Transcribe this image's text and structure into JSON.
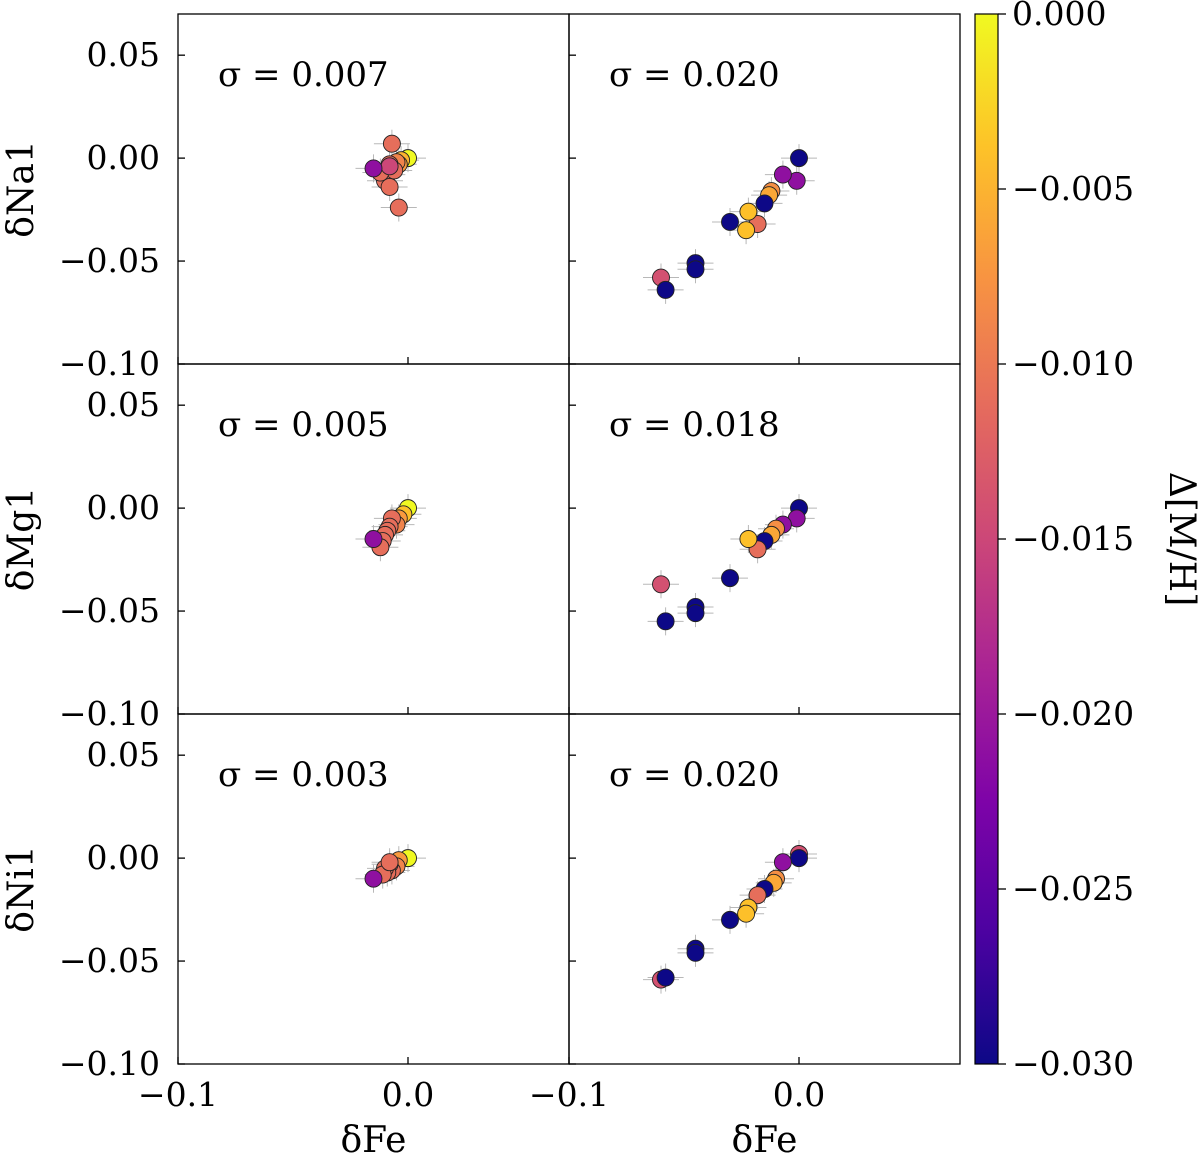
{
  "chart_data": {
    "type": "scatter",
    "grid": false,
    "layout": "3 rows x 2 columns of panels, shared axes, colorbar on the right",
    "xlabel": "δFe",
    "xlim": [
      -0.1,
      0.07
    ],
    "ylim": [
      -0.1,
      0.07
    ],
    "x_ticks": [
      -0.1,
      0.0
    ],
    "x_tick_labels": [
      "−0.1",
      "0.0"
    ],
    "y_ticks": [
      0.05,
      0.0,
      -0.05,
      -0.1
    ],
    "y_tick_labels": [
      "0.05",
      "0.00",
      "−0.05",
      "−0.10"
    ],
    "colorbar": {
      "label": "Δ[M/H]",
      "range": [
        -0.03,
        0.0
      ],
      "colormap": "plasma",
      "ticks": [
        0.0,
        -0.005,
        -0.01,
        -0.015,
        -0.02,
        -0.025,
        -0.03
      ],
      "tick_labels": [
        "0.000",
        "−0.005",
        "−0.010",
        "−0.015",
        "−0.020",
        "−0.025",
        "−0.030"
      ]
    },
    "rows": [
      {
        "ylabel": "δNa1",
        "panels": [
          {
            "sigma_label": "σ = 0.007",
            "points": [
              {
                "x": 0.0,
                "y": 0.0,
                "c": 0.0
              },
              {
                "x": -0.003,
                "y": -0.001,
                "c": -0.005
              },
              {
                "x": -0.004,
                "y": -0.003,
                "c": -0.007
              },
              {
                "x": -0.005,
                "y": -0.002,
                "c": -0.009
              },
              {
                "x": -0.007,
                "y": 0.007,
                "c": -0.011
              },
              {
                "x": -0.008,
                "y": -0.003,
                "c": -0.011
              },
              {
                "x": -0.009,
                "y": -0.008,
                "c": -0.011
              },
              {
                "x": -0.01,
                "y": -0.011,
                "c": -0.011
              },
              {
                "x": -0.008,
                "y": -0.014,
                "c": -0.011
              },
              {
                "x": -0.006,
                "y": -0.006,
                "c": -0.011
              },
              {
                "x": -0.012,
                "y": -0.007,
                "c": -0.011
              },
              {
                "x": -0.004,
                "y": -0.024,
                "c": -0.011
              },
              {
                "x": -0.008,
                "y": -0.004,
                "c": -0.015
              },
              {
                "x": -0.015,
                "y": -0.005,
                "c": -0.021
              }
            ]
          },
          {
            "sigma_label": "σ = 0.020",
            "points": [
              {
                "x": 0.0,
                "y": 0.0,
                "c": -0.03
              },
              {
                "x": -0.001,
                "y": -0.011,
                "c": -0.021
              },
              {
                "x": -0.007,
                "y": -0.008,
                "c": -0.021
              },
              {
                "x": -0.012,
                "y": -0.016,
                "c": -0.008
              },
              {
                "x": -0.013,
                "y": -0.018,
                "c": -0.006
              },
              {
                "x": -0.015,
                "y": -0.022,
                "c": -0.03
              },
              {
                "x": -0.018,
                "y": -0.032,
                "c": -0.011
              },
              {
                "x": -0.022,
                "y": -0.026,
                "c": -0.004
              },
              {
                "x": -0.023,
                "y": -0.035,
                "c": -0.004
              },
              {
                "x": -0.03,
                "y": -0.031,
                "c": -0.03
              },
              {
                "x": -0.045,
                "y": -0.051,
                "c": -0.03
              },
              {
                "x": -0.045,
                "y": -0.054,
                "c": -0.03
              },
              {
                "x": -0.06,
                "y": -0.058,
                "c": -0.014
              },
              {
                "x": -0.058,
                "y": -0.064,
                "c": -0.03
              }
            ]
          }
        ]
      },
      {
        "ylabel": "δMg1",
        "panels": [
          {
            "sigma_label": "σ = 0.005",
            "points": [
              {
                "x": 0.0,
                "y": 0.0,
                "c": 0.0
              },
              {
                "x": -0.002,
                "y": -0.003,
                "c": -0.004
              },
              {
                "x": -0.004,
                "y": -0.005,
                "c": -0.007
              },
              {
                "x": -0.005,
                "y": -0.008,
                "c": -0.009
              },
              {
                "x": -0.007,
                "y": -0.005,
                "c": -0.011
              },
              {
                "x": -0.008,
                "y": -0.009,
                "c": -0.011
              },
              {
                "x": -0.009,
                "y": -0.011,
                "c": -0.011
              },
              {
                "x": -0.01,
                "y": -0.013,
                "c": -0.011
              },
              {
                "x": -0.011,
                "y": -0.016,
                "c": -0.011
              },
              {
                "x": -0.012,
                "y": -0.019,
                "c": -0.011
              },
              {
                "x": -0.015,
                "y": -0.015,
                "c": -0.021
              }
            ]
          },
          {
            "sigma_label": "σ = 0.018",
            "points": [
              {
                "x": 0.0,
                "y": 0.0,
                "c": -0.03
              },
              {
                "x": -0.001,
                "y": -0.005,
                "c": -0.021
              },
              {
                "x": -0.007,
                "y": -0.008,
                "c": -0.021
              },
              {
                "x": -0.01,
                "y": -0.01,
                "c": -0.008
              },
              {
                "x": -0.012,
                "y": -0.013,
                "c": -0.006
              },
              {
                "x": -0.015,
                "y": -0.016,
                "c": -0.03
              },
              {
                "x": -0.018,
                "y": -0.02,
                "c": -0.011
              },
              {
                "x": -0.022,
                "y": -0.015,
                "c": -0.004
              },
              {
                "x": -0.03,
                "y": -0.034,
                "c": -0.03
              },
              {
                "x": -0.045,
                "y": -0.048,
                "c": -0.03
              },
              {
                "x": -0.045,
                "y": -0.051,
                "c": -0.03
              },
              {
                "x": -0.06,
                "y": -0.037,
                "c": -0.014
              },
              {
                "x": -0.058,
                "y": -0.055,
                "c": -0.03
              }
            ]
          }
        ]
      },
      {
        "ylabel": "δNi1",
        "panels": [
          {
            "sigma_label": "σ = 0.003",
            "points": [
              {
                "x": 0.0,
                "y": 0.0,
                "c": 0.0
              },
              {
                "x": -0.004,
                "y": -0.001,
                "c": -0.007
              },
              {
                "x": -0.005,
                "y": -0.004,
                "c": -0.009
              },
              {
                "x": -0.007,
                "y": -0.006,
                "c": -0.011
              },
              {
                "x": -0.008,
                "y": -0.003,
                "c": -0.011
              },
              {
                "x": -0.009,
                "y": -0.007,
                "c": -0.011
              },
              {
                "x": -0.01,
                "y": -0.005,
                "c": -0.011
              },
              {
                "x": -0.011,
                "y": -0.008,
                "c": -0.011
              },
              {
                "x": -0.008,
                "y": -0.002,
                "c": -0.011
              },
              {
                "x": -0.015,
                "y": -0.01,
                "c": -0.021
              }
            ]
          },
          {
            "sigma_label": "σ = 0.020",
            "points": [
              {
                "x": 0.0,
                "y": 0.002,
                "c": -0.014
              },
              {
                "x": 0.0,
                "y": 0.0,
                "c": -0.03
              },
              {
                "x": -0.007,
                "y": -0.002,
                "c": -0.021
              },
              {
                "x": -0.01,
                "y": -0.01,
                "c": -0.008
              },
              {
                "x": -0.011,
                "y": -0.012,
                "c": -0.006
              },
              {
                "x": -0.015,
                "y": -0.015,
                "c": -0.03
              },
              {
                "x": -0.018,
                "y": -0.018,
                "c": -0.011
              },
              {
                "x": -0.022,
                "y": -0.024,
                "c": -0.004
              },
              {
                "x": -0.023,
                "y": -0.027,
                "c": -0.004
              },
              {
                "x": -0.03,
                "y": -0.03,
                "c": -0.03
              },
              {
                "x": -0.045,
                "y": -0.044,
                "c": -0.03
              },
              {
                "x": -0.045,
                "y": -0.046,
                "c": -0.03
              },
              {
                "x": -0.06,
                "y": -0.059,
                "c": -0.014
              },
              {
                "x": -0.058,
                "y": -0.058,
                "c": -0.03
              }
            ]
          }
        ]
      }
    ]
  }
}
